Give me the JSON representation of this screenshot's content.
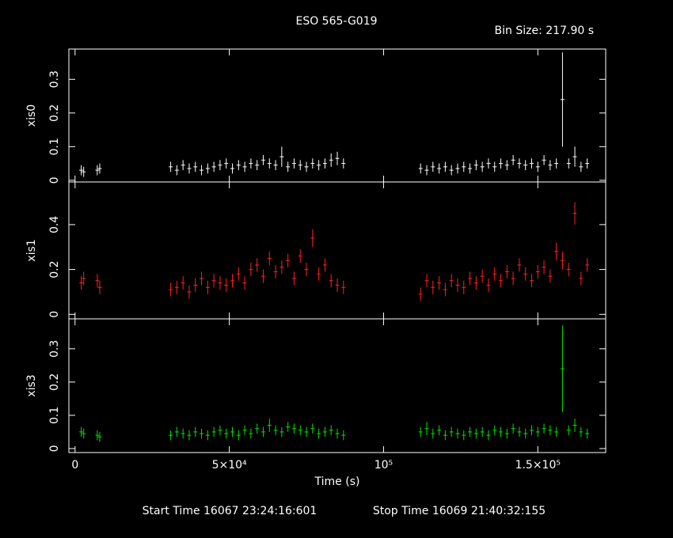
{
  "header": {
    "title": "ESO 565-G019",
    "bin_size": "Bin Size: 217.90 s"
  },
  "footer": {
    "start_time": "Start Time 16067 23:24:16:601",
    "stop_time": "Stop Time 16069 21:40:32:155"
  },
  "chart_data": [
    {
      "type": "errorbar",
      "ylabel": "xis0",
      "color": "#ffffff",
      "x": [
        2000,
        2800,
        7200,
        8000,
        31000,
        33000,
        35000,
        37000,
        39000,
        41000,
        43000,
        45000,
        47000,
        49000,
        51000,
        53000,
        55000,
        57000,
        59000,
        61000,
        63000,
        65000,
        67000,
        69000,
        71000,
        73000,
        75000,
        77000,
        79000,
        81000,
        83000,
        85000,
        87000,
        112000,
        114000,
        116000,
        118000,
        120000,
        122000,
        124000,
        126000,
        128000,
        130000,
        132000,
        134000,
        136000,
        138000,
        140000,
        142000,
        144000,
        146000,
        148000,
        150000,
        152000,
        154000,
        156000,
        158000,
        160000,
        162000,
        164000,
        166000
      ],
      "values": [
        0.03,
        0.025,
        0.03,
        0.035,
        0.04,
        0.03,
        0.045,
        0.035,
        0.04,
        0.03,
        0.035,
        0.04,
        0.045,
        0.05,
        0.035,
        0.045,
        0.04,
        0.05,
        0.045,
        0.06,
        0.05,
        0.045,
        0.07,
        0.04,
        0.05,
        0.045,
        0.04,
        0.05,
        0.045,
        0.05,
        0.06,
        0.065,
        0.05,
        0.035,
        0.03,
        0.04,
        0.035,
        0.04,
        0.03,
        0.035,
        0.04,
        0.035,
        0.045,
        0.04,
        0.05,
        0.04,
        0.05,
        0.045,
        0.06,
        0.05,
        0.045,
        0.05,
        0.04,
        0.06,
        0.045,
        0.05,
        0.24,
        0.05,
        0.07,
        0.04,
        0.05
      ],
      "errors": [
        0.015,
        0.015,
        0.015,
        0.015,
        0.015,
        0.015,
        0.015,
        0.015,
        0.015,
        0.015,
        0.015,
        0.015,
        0.015,
        0.015,
        0.015,
        0.015,
        0.015,
        0.015,
        0.015,
        0.015,
        0.015,
        0.015,
        0.03,
        0.015,
        0.015,
        0.015,
        0.015,
        0.015,
        0.015,
        0.015,
        0.02,
        0.02,
        0.015,
        0.015,
        0.015,
        0.015,
        0.015,
        0.015,
        0.015,
        0.015,
        0.015,
        0.015,
        0.015,
        0.015,
        0.015,
        0.015,
        0.015,
        0.015,
        0.015,
        0.015,
        0.015,
        0.015,
        0.015,
        0.015,
        0.015,
        0.015,
        0.14,
        0.015,
        0.03,
        0.015,
        0.015
      ],
      "xlim": [
        -2000,
        172000
      ],
      "ylim": [
        -0.005,
        0.39
      ],
      "xticks": [
        0,
        50000,
        100000,
        150000
      ],
      "yticks": [
        0,
        0.1,
        0.2,
        0.3
      ]
    },
    {
      "type": "errorbar",
      "ylabel": "xis1",
      "color": "#ff2020",
      "x": [
        2000,
        2800,
        7200,
        8000,
        31000,
        33000,
        35000,
        37000,
        39000,
        41000,
        43000,
        45000,
        47000,
        49000,
        51000,
        53000,
        55000,
        57000,
        59000,
        61000,
        63000,
        65000,
        67000,
        69000,
        71000,
        73000,
        75000,
        77000,
        79000,
        81000,
        83000,
        85000,
        87000,
        112000,
        114000,
        116000,
        118000,
        120000,
        122000,
        124000,
        126000,
        128000,
        130000,
        132000,
        134000,
        136000,
        138000,
        140000,
        142000,
        144000,
        146000,
        148000,
        150000,
        152000,
        154000,
        156000,
        158000,
        160000,
        162000,
        164000,
        166000
      ],
      "values": [
        0.14,
        0.16,
        0.15,
        0.12,
        0.11,
        0.12,
        0.14,
        0.1,
        0.13,
        0.16,
        0.12,
        0.15,
        0.14,
        0.13,
        0.15,
        0.18,
        0.14,
        0.2,
        0.22,
        0.17,
        0.25,
        0.19,
        0.21,
        0.24,
        0.16,
        0.26,
        0.2,
        0.34,
        0.18,
        0.22,
        0.15,
        0.13,
        0.12,
        0.09,
        0.15,
        0.12,
        0.14,
        0.11,
        0.15,
        0.13,
        0.12,
        0.16,
        0.14,
        0.17,
        0.13,
        0.18,
        0.15,
        0.19,
        0.16,
        0.22,
        0.18,
        0.15,
        0.19,
        0.21,
        0.17,
        0.28,
        0.24,
        0.2,
        0.45,
        0.16,
        0.22
      ],
      "errors": [
        0.03,
        0.03,
        0.03,
        0.03,
        0.03,
        0.03,
        0.03,
        0.03,
        0.03,
        0.03,
        0.03,
        0.03,
        0.03,
        0.03,
        0.03,
        0.03,
        0.03,
        0.03,
        0.03,
        0.03,
        0.03,
        0.03,
        0.03,
        0.03,
        0.03,
        0.03,
        0.03,
        0.04,
        0.03,
        0.03,
        0.03,
        0.03,
        0.03,
        0.03,
        0.03,
        0.03,
        0.03,
        0.03,
        0.03,
        0.03,
        0.03,
        0.03,
        0.03,
        0.03,
        0.03,
        0.03,
        0.03,
        0.03,
        0.03,
        0.03,
        0.03,
        0.03,
        0.03,
        0.03,
        0.03,
        0.04,
        0.04,
        0.03,
        0.05,
        0.03,
        0.03
      ],
      "xlim": [
        -2000,
        172000
      ],
      "ylim": [
        -0.02,
        0.59
      ],
      "xticks": [
        0,
        50000,
        100000,
        150000
      ],
      "yticks": [
        0,
        0.2,
        0.4
      ]
    },
    {
      "type": "errorbar",
      "ylabel": "xis3",
      "xlabel": "Time (s)",
      "color": "#00e000",
      "x": [
        2000,
        2800,
        7200,
        8000,
        31000,
        33000,
        35000,
        37000,
        39000,
        41000,
        43000,
        45000,
        47000,
        49000,
        51000,
        53000,
        55000,
        57000,
        59000,
        61000,
        63000,
        65000,
        67000,
        69000,
        71000,
        73000,
        75000,
        77000,
        79000,
        81000,
        83000,
        85000,
        87000,
        112000,
        114000,
        116000,
        118000,
        120000,
        122000,
        124000,
        126000,
        128000,
        130000,
        132000,
        134000,
        136000,
        138000,
        140000,
        142000,
        144000,
        146000,
        148000,
        150000,
        152000,
        154000,
        156000,
        158000,
        160000,
        162000,
        164000,
        166000
      ],
      "values": [
        0.05,
        0.045,
        0.04,
        0.035,
        0.04,
        0.05,
        0.045,
        0.04,
        0.05,
        0.045,
        0.04,
        0.05,
        0.055,
        0.045,
        0.05,
        0.04,
        0.055,
        0.045,
        0.06,
        0.05,
        0.07,
        0.055,
        0.05,
        0.065,
        0.06,
        0.055,
        0.05,
        0.06,
        0.045,
        0.05,
        0.055,
        0.045,
        0.04,
        0.05,
        0.06,
        0.045,
        0.055,
        0.04,
        0.05,
        0.045,
        0.04,
        0.05,
        0.045,
        0.05,
        0.04,
        0.055,
        0.05,
        0.045,
        0.06,
        0.05,
        0.045,
        0.055,
        0.05,
        0.06,
        0.055,
        0.05,
        0.24,
        0.055,
        0.07,
        0.05,
        0.045
      ],
      "errors": [
        0.015,
        0.015,
        0.015,
        0.015,
        0.015,
        0.015,
        0.015,
        0.015,
        0.015,
        0.015,
        0.015,
        0.015,
        0.015,
        0.015,
        0.015,
        0.015,
        0.015,
        0.015,
        0.015,
        0.015,
        0.02,
        0.015,
        0.015,
        0.015,
        0.015,
        0.015,
        0.015,
        0.015,
        0.015,
        0.015,
        0.015,
        0.015,
        0.015,
        0.015,
        0.02,
        0.015,
        0.015,
        0.015,
        0.015,
        0.015,
        0.015,
        0.015,
        0.015,
        0.015,
        0.015,
        0.015,
        0.015,
        0.015,
        0.015,
        0.015,
        0.015,
        0.015,
        0.015,
        0.015,
        0.015,
        0.015,
        0.13,
        0.015,
        0.02,
        0.015,
        0.015
      ],
      "xlim": [
        -2000,
        172000
      ],
      "ylim": [
        -0.012,
        0.39
      ],
      "xticks": [
        {
          "value": 0,
          "label": "0"
        },
        {
          "value": 50000,
          "label": "5×10⁴"
        },
        {
          "value": 100000,
          "label": "10⁵"
        },
        {
          "value": 150000,
          "label": "1.5×10⁵"
        }
      ],
      "yticks": [
        0,
        0.1,
        0.2,
        0.3
      ]
    }
  ]
}
